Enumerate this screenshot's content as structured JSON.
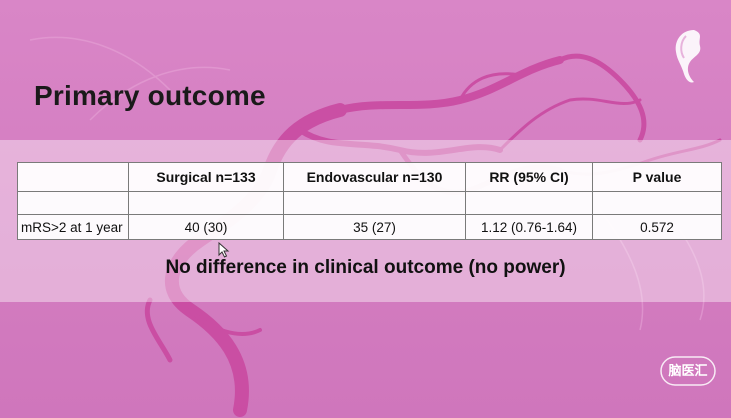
{
  "slide": {
    "title": "Primary outcome",
    "note": "No difference in clinical outcome (no power)"
  },
  "table": {
    "headers": [
      "",
      "Surgical  n=133",
      "Endovascular n=130",
      "RR (95% CI)",
      "P value"
    ],
    "empty_row": [
      "",
      "",
      "",
      "",
      ""
    ],
    "rows": [
      {
        "cells": [
          "mRS>2 at 1 year",
          "40 (30)",
          "35 (27)",
          "1.12 (0.76-1.64)",
          "0.572"
        ]
      }
    ]
  },
  "watermark": {
    "text": "脑医汇",
    "icon": "profile-head-icon"
  },
  "colors": {
    "background": "#d57fc2",
    "vessel": "#c4429c",
    "text": "#111111"
  }
}
